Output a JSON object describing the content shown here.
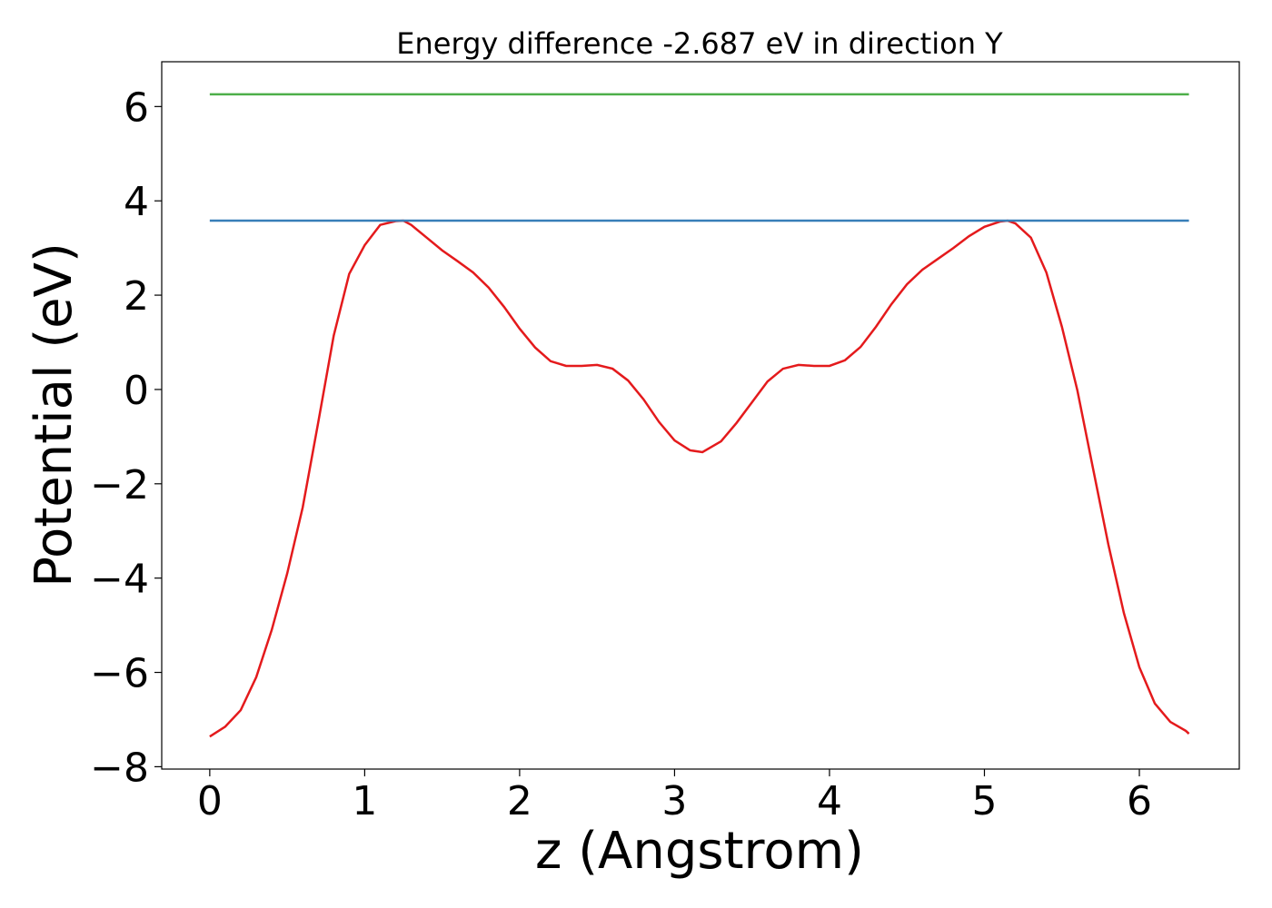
{
  "chart_data": {
    "type": "line",
    "title": "Energy difference -2.687 eV in direction Y",
    "x_label": "z (Angstrom)",
    "y_label": "Potential (eV)",
    "xlim": [
      -0.31,
      6.645
    ],
    "ylim": [
      -8.05,
      6.95
    ],
    "xticks": [
      0,
      1,
      2,
      3,
      4,
      5,
      6
    ],
    "yticks": [
      {
        "value": -8,
        "label": "−8"
      },
      {
        "value": -6,
        "label": "−6"
      },
      {
        "value": -4,
        "label": "−4"
      },
      {
        "value": -2,
        "label": "−2"
      },
      0,
      2,
      4,
      6
    ],
    "series": [
      {
        "color": "#e41a1c",
        "x": [
          0,
          0.1,
          0.2,
          0.3,
          0.4,
          0.5,
          0.6,
          0.7,
          0.8,
          0.9,
          1.0,
          1.1,
          1.2,
          1.25,
          1.3,
          1.4,
          1.5,
          1.6,
          1.7,
          1.8,
          1.9,
          2.0,
          2.1,
          2.2,
          2.3,
          2.4,
          2.5,
          2.6,
          2.7,
          2.8,
          2.9,
          3.0,
          3.1,
          3.18,
          3.3,
          3.4,
          3.5,
          3.6,
          3.7,
          3.8,
          3.9,
          4.0,
          4.1,
          4.2,
          4.3,
          4.4,
          4.5,
          4.6,
          4.7,
          4.8,
          4.9,
          5.0,
          5.1,
          5.15,
          5.2,
          5.3,
          5.4,
          5.5,
          5.6,
          5.7,
          5.8,
          5.9,
          6.0,
          6.1,
          6.2,
          6.3,
          6.32
        ],
        "values": [
          -7.36,
          -7.15,
          -6.8,
          -6.1,
          -5.1,
          -3.9,
          -2.5,
          -0.7,
          1.14,
          2.45,
          3.06,
          3.49,
          3.57,
          3.58,
          3.49,
          3.22,
          2.95,
          2.72,
          2.48,
          2.16,
          1.75,
          1.29,
          0.89,
          0.6,
          0.5,
          0.5,
          0.52,
          0.44,
          0.19,
          -0.21,
          -0.69,
          -1.08,
          -1.29,
          -1.33,
          -1.1,
          -0.71,
          -0.27,
          0.17,
          0.44,
          0.52,
          0.5,
          0.5,
          0.62,
          0.9,
          1.33,
          1.81,
          2.23,
          2.54,
          2.77,
          3.0,
          3.25,
          3.45,
          3.56,
          3.58,
          3.52,
          3.22,
          2.48,
          1.33,
          -0.02,
          -1.66,
          -3.29,
          -4.74,
          -5.89,
          -6.66,
          -7.05,
          -7.24,
          -7.3
        ]
      },
      {
        "color": "#377eb8",
        "x": [
          0,
          6.32
        ],
        "values": [
          3.58,
          3.58
        ]
      },
      {
        "color": "#4daf4a",
        "x": [
          0,
          6.32
        ],
        "values": [
          6.26,
          6.26
        ]
      }
    ]
  }
}
